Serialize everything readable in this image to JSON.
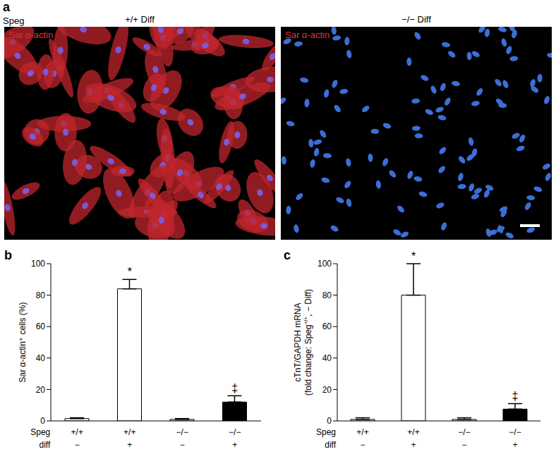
{
  "panel_a": {
    "label": "a",
    "row_label": "Speg",
    "images": [
      {
        "title": "+/+ Diff",
        "stain": "Sar α-actin"
      },
      {
        "title": "−/− Diff",
        "stain": "Sar α-actin"
      }
    ]
  },
  "chart_data": [
    {
      "type": "bar",
      "panel": "b",
      "y_label": "Sar α-actin⁺ cells (%)",
      "categories": [
        "+/+",
        "+/+",
        "−/−",
        "−/−"
      ],
      "row_labels": [
        "Speg",
        "diff"
      ],
      "diff": [
        "−",
        "+",
        "−",
        "+"
      ],
      "values": [
        1.5,
        84,
        1,
        12
      ],
      "errors": [
        0.5,
        6,
        0.5,
        4
      ],
      "annotations": [
        null,
        "*",
        null,
        "‡"
      ],
      "colors": [
        "#ffffff",
        "#ffffff",
        "#ffffff",
        "#000000"
      ],
      "ylim": [
        0,
        100
      ],
      "yticks": [
        0,
        20,
        40,
        60,
        80,
        100
      ]
    },
    {
      "type": "bar",
      "panel": "c",
      "y_label": "cTnT/GAPDH mRNA",
      "y_label_2": [
        "(fold change: Speg",
        "+/+",
        ", − Diff)"
      ],
      "categories": [
        "+/+",
        "+/+",
        "−/−",
        "−/−"
      ],
      "row_labels": [
        "Speg",
        "diff"
      ],
      "diff": [
        "−",
        "+",
        "−",
        "+"
      ],
      "values": [
        1,
        80,
        1,
        7.5
      ],
      "errors": [
        1,
        20,
        1,
        3.5
      ],
      "annotations": [
        null,
        "*",
        null,
        "‡"
      ],
      "colors": [
        "#ffffff",
        "#ffffff",
        "#ffffff",
        "#000000"
      ],
      "ylim": [
        0,
        100
      ],
      "yticks": [
        0,
        20,
        40,
        60,
        80,
        100
      ]
    }
  ]
}
